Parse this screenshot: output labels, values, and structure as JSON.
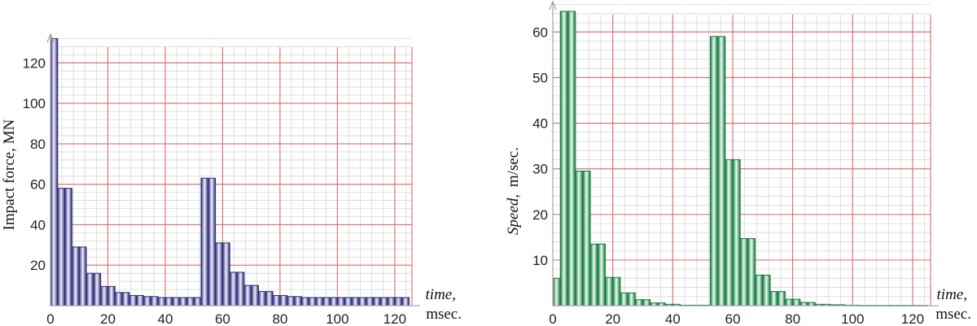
{
  "chart_data": [
    {
      "type": "bar",
      "ylabel": "Impact force, MN",
      "xlabel_italic": "time,",
      "xlabel_unit": "msec.",
      "x_ticks": [
        0,
        20,
        40,
        60,
        80,
        100,
        120
      ],
      "y_ticks": [
        20,
        40,
        60,
        80,
        100,
        120
      ],
      "xlim": [
        0,
        126
      ],
      "ylim": [
        0,
        135
      ],
      "bar_width": 2.5,
      "grid": true,
      "colors": {
        "dark": "#2c2a7a",
        "light": "#f2f2fb"
      },
      "x": [
        1.25,
        3.75,
        6.25,
        8.75,
        11.25,
        13.75,
        16.25,
        18.75,
        21.25,
        23.75,
        26.25,
        28.75,
        31.25,
        33.75,
        36.25,
        38.75,
        41.25,
        43.75,
        46.25,
        48.75,
        51.25,
        53.75,
        56.25,
        58.75,
        61.25,
        63.75,
        66.25,
        68.75,
        71.25,
        73.75,
        76.25,
        78.75,
        81.25,
        83.75,
        86.25,
        88.75,
        91.25,
        93.75,
        96.25,
        98.75,
        101.25,
        103.75,
        106.25,
        108.75,
        111.25,
        113.75,
        116.25,
        118.75,
        121.25,
        123.75
      ],
      "values": [
        132,
        58,
        58,
        29,
        29,
        16,
        16,
        9.5,
        9.5,
        6.5,
        6.5,
        5,
        5,
        4.5,
        4.5,
        4,
        4,
        4,
        4,
        4,
        4,
        63,
        63,
        31,
        31,
        16.5,
        16.5,
        10,
        10,
        7,
        7,
        5,
        5,
        4.5,
        4.5,
        4,
        4,
        4,
        4,
        4,
        4,
        4,
        4,
        4,
        4,
        4,
        4,
        4,
        4,
        4
      ]
    },
    {
      "type": "bar",
      "ylabel_italic": "Speed,",
      "ylabel_unit": "m/sec.",
      "xlabel_italic": "time,",
      "xlabel_unit": "msec.",
      "x_ticks": [
        0,
        20,
        40,
        60,
        80,
        100,
        120
      ],
      "y_ticks": [
        10,
        20,
        30,
        40,
        50,
        60
      ],
      "xlim": [
        0,
        126
      ],
      "ylim": [
        0,
        67
      ],
      "bar_width": 2.5,
      "grid": true,
      "colors": {
        "dark": "#0f7a3c",
        "light": "#f0fbf3"
      },
      "x": [
        1.25,
        3.75,
        6.25,
        8.75,
        11.25,
        13.75,
        16.25,
        18.75,
        21.25,
        23.75,
        26.25,
        28.75,
        31.25,
        33.75,
        36.25,
        38.75,
        41.25,
        43.75,
        46.25,
        48.75,
        51.25,
        53.75,
        56.25,
        58.75,
        61.25,
        63.75,
        66.25,
        68.75,
        71.25,
        73.75,
        76.25,
        78.75,
        81.25,
        83.75,
        86.25,
        88.75,
        91.25,
        93.75,
        96.25,
        98.75,
        101.25,
        103.75,
        106.25,
        108.75,
        111.25,
        113.75,
        116.25,
        118.75,
        121.25,
        123.75
      ],
      "values": [
        6,
        64.5,
        64.5,
        29.5,
        29.5,
        13.5,
        13.5,
        6.2,
        6.2,
        2.8,
        2.8,
        1.3,
        1.3,
        0.6,
        0.6,
        0.3,
        0.3,
        0.1,
        0.1,
        0.1,
        0.1,
        59,
        59,
        32,
        32,
        14.7,
        14.7,
        6.7,
        6.7,
        3.1,
        3.1,
        1.4,
        1.4,
        0.7,
        0.7,
        0.3,
        0.3,
        0.2,
        0.2,
        0.1,
        0.1,
        0.05,
        0.05,
        0.05,
        0.05,
        0.05,
        0.05,
        0.05,
        0.05,
        0.05
      ]
    }
  ]
}
